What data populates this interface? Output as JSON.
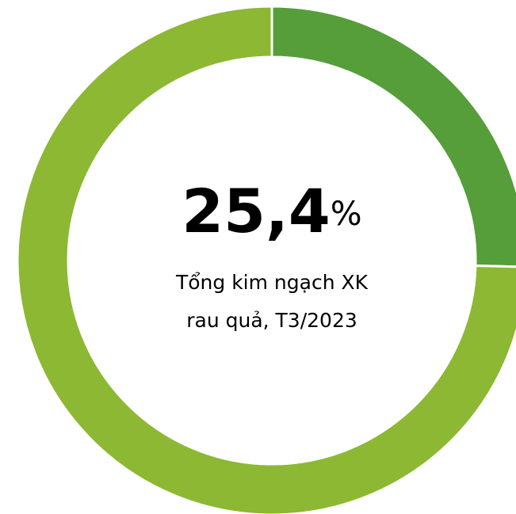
{
  "chart_data": {
    "type": "donut",
    "values": [
      25.4,
      74.6
    ],
    "value_labels": [
      "25,4%",
      null
    ],
    "colors": [
      "#559e3a",
      "#8db833"
    ],
    "subtitle": [
      "Tổng kim ngạch XK",
      "rau quả, T3/2023"
    ]
  }
}
